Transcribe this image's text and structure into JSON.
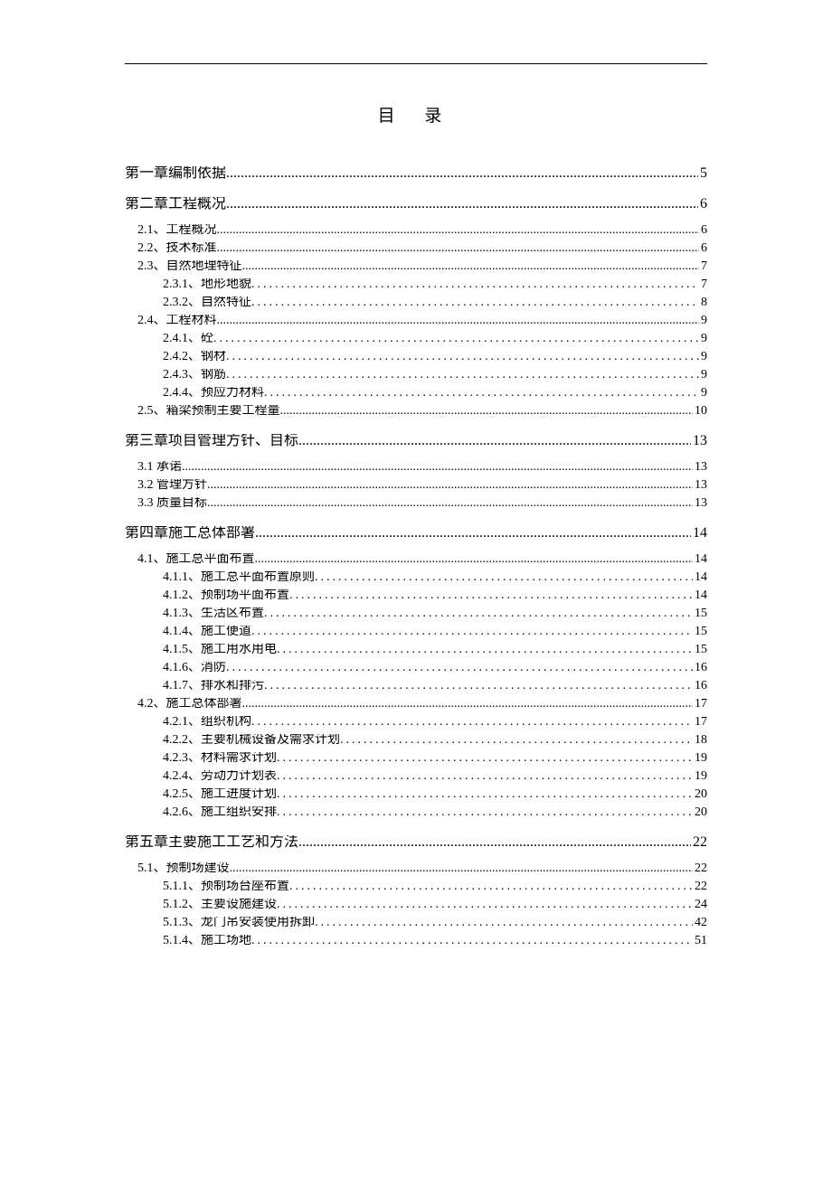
{
  "title": "目 录",
  "entries": [
    {
      "level": 1,
      "chapter": "第一章",
      "title": "编制依据",
      "page": "5"
    },
    {
      "level": 1,
      "chapter": "第二章",
      "title": "工程概况",
      "page": "6"
    },
    {
      "level": 2,
      "num": "2.1、",
      "title": "工程概况",
      "page": "6"
    },
    {
      "level": 2,
      "num": "2.2、",
      "title": "技术标准",
      "page": "6"
    },
    {
      "level": 2,
      "num": "2.3、",
      "title": "自然地理特征",
      "page": "7"
    },
    {
      "level": 3,
      "num": "2.3.1、",
      "title": "地形地貌",
      "page": "7"
    },
    {
      "level": 3,
      "num": "2.3.2、",
      "title": "自然特征",
      "page": "8"
    },
    {
      "level": 2,
      "num": "2.4、",
      "title": "工程材料",
      "page": "9"
    },
    {
      "level": 3,
      "num": "2.4.1、",
      "title": "砼",
      "page": "9"
    },
    {
      "level": 3,
      "num": "2.4.2、",
      "title": "钢材",
      "page": "9"
    },
    {
      "level": 3,
      "num": "2.4.3、",
      "title": "钢筋",
      "page": "9"
    },
    {
      "level": 3,
      "num": "2.4.4、",
      "title": "预应力材料",
      "page": "9"
    },
    {
      "level": 2,
      "num": "2.5、",
      "title": "箱梁预制主要工程量",
      "page": "10"
    },
    {
      "level": 1,
      "chapter": "第三章",
      "title": "项目管理方针、目标",
      "page": "13"
    },
    {
      "level": 2,
      "num": "3.1 ",
      "title": "承诺",
      "page": "13"
    },
    {
      "level": 2,
      "num": "3.2 ",
      "title": "管理方针",
      "page": "13"
    },
    {
      "level": 2,
      "num": "3.3 ",
      "title": "质量目标",
      "page": "13"
    },
    {
      "level": 1,
      "chapter": "第四章",
      "title": "施工总体部署",
      "page": "14"
    },
    {
      "level": 2,
      "num": "4.1、",
      "title": "施工总平面布置",
      "page": "14"
    },
    {
      "level": 3,
      "num": "4.1.1、",
      "title": "施工总平面布置原则",
      "page": "14"
    },
    {
      "level": 3,
      "num": "4.1.2、",
      "title": "预制场平面布置",
      "page": "14"
    },
    {
      "level": 3,
      "num": "4.1.3、",
      "title": "生活区布置",
      "page": "15"
    },
    {
      "level": 3,
      "num": "4.1.4、",
      "title": "施工便道",
      "page": "15"
    },
    {
      "level": 3,
      "num": "4.1.5、",
      "title": "施工用水用电",
      "page": "15"
    },
    {
      "level": 3,
      "num": "4.1.6、",
      "title": "消防",
      "page": "16"
    },
    {
      "level": 3,
      "num": "4.1.7、",
      "title": "排水和排污",
      "page": "16"
    },
    {
      "level": 2,
      "num": "4.2、",
      "title": "施工总体部署",
      "page": "17"
    },
    {
      "level": 3,
      "num": "4.2.1、",
      "title": "组织机构",
      "page": "17"
    },
    {
      "level": 3,
      "num": "4.2.2、",
      "title": "主要机械设备及需求计划",
      "page": "18"
    },
    {
      "level": 3,
      "num": "4.2.3、",
      "title": "材料需求计划",
      "page": "19"
    },
    {
      "level": 3,
      "num": "4.2.4、",
      "title": "劳动力计划表",
      "page": "19"
    },
    {
      "level": 3,
      "num": "4.2.5、",
      "title": "施工进度计划",
      "page": "20"
    },
    {
      "level": 3,
      "num": "4.2.6、",
      "title": "施工组织安排",
      "page": "20"
    },
    {
      "level": 1,
      "chapter": "第五章",
      "title": "主要施工工艺和方法",
      "page": "22"
    },
    {
      "level": 2,
      "num": "5.1、",
      "title": "预制场建设",
      "page": "22"
    },
    {
      "level": 3,
      "num": "5.1.1、",
      "title": "预制场台座布置",
      "page": "22"
    },
    {
      "level": 3,
      "num": "5.1.2、",
      "title": "主要设施建设",
      "page": "24"
    },
    {
      "level": 3,
      "num": "5.1.3、",
      "title": "龙门吊安装使用拆卸",
      "page": "42"
    },
    {
      "level": 3,
      "num": "5.1.4、",
      "title": "施工场地",
      "page": "51"
    }
  ],
  "styles": {
    "dot_char_l12": ".",
    "dot_char_l3": ".",
    "text_color": "#000000",
    "background_color": "#ffffff"
  }
}
